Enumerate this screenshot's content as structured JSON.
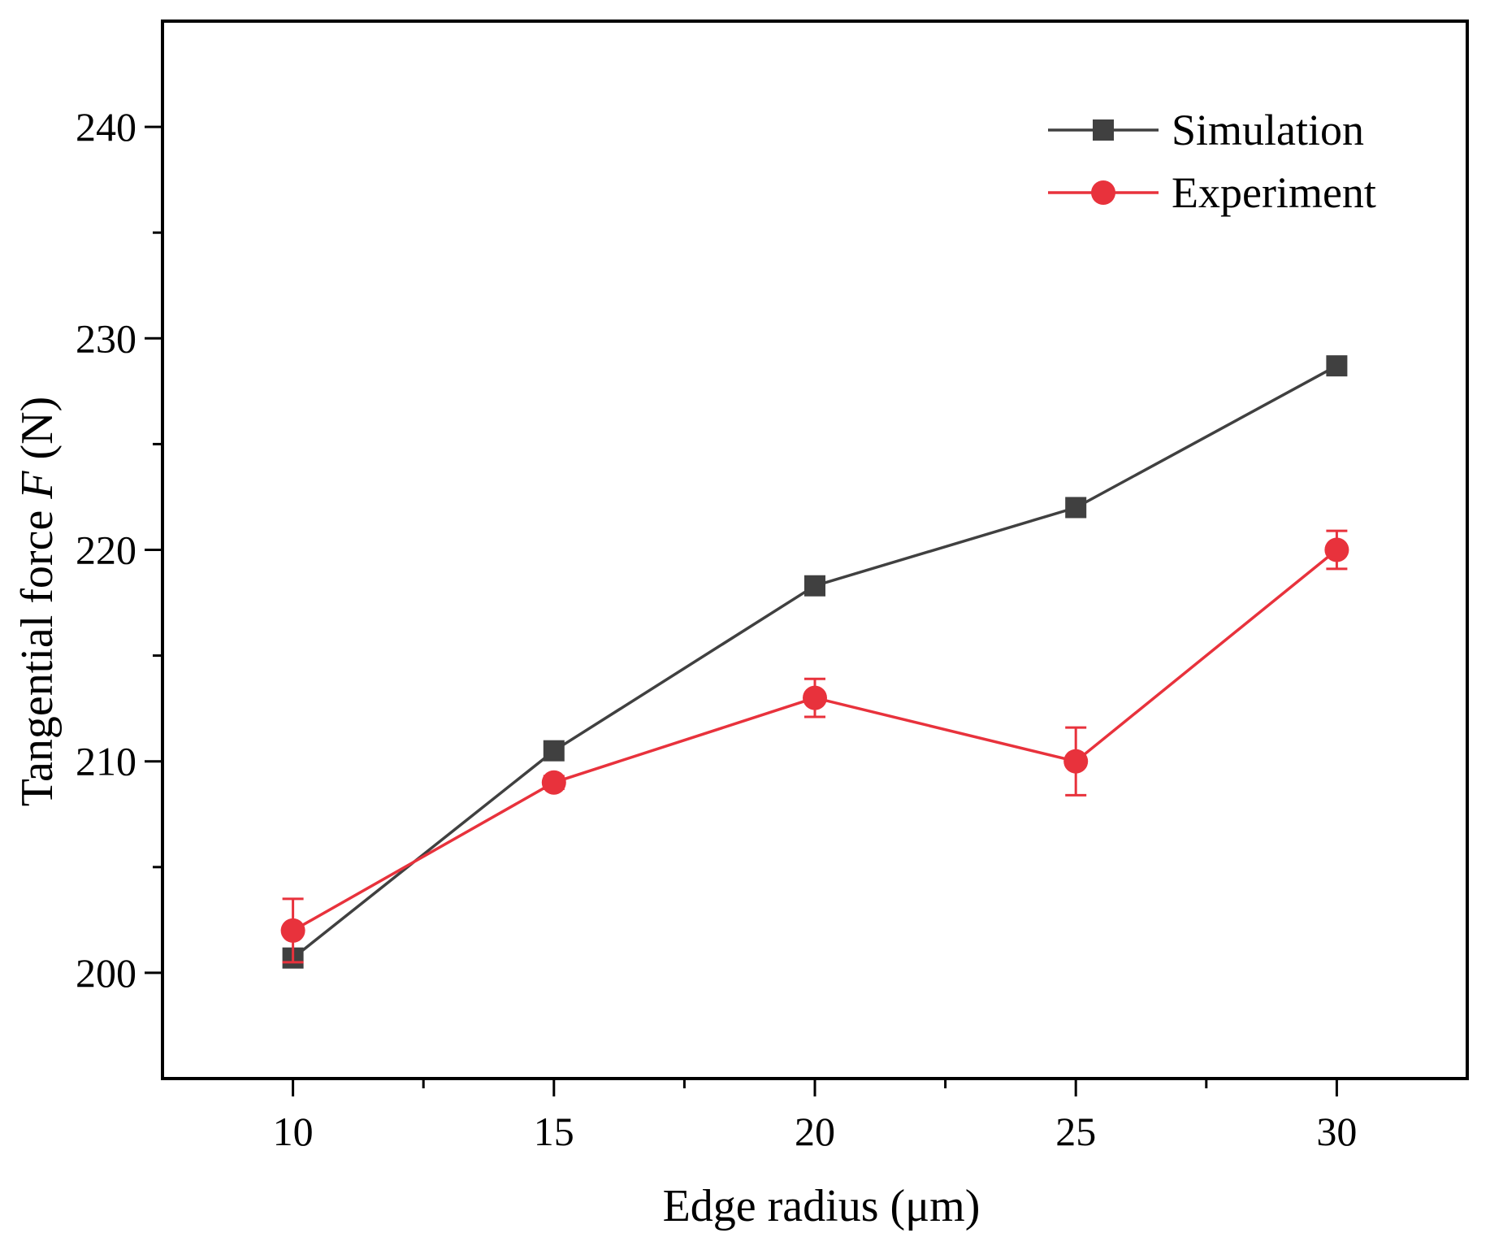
{
  "chart_data": {
    "type": "line",
    "title": "",
    "xlabel": "Edge radius (μm)",
    "ylabel_prefix": "Tangential force ",
    "ylabel_var": "F",
    "ylabel_suffix": " (N)",
    "x": [
      10,
      15,
      20,
      25,
      30
    ],
    "xlim": [
      7.5,
      32.5
    ],
    "ylim": [
      195,
      245
    ],
    "x_ticks": [
      10,
      15,
      20,
      25,
      30
    ],
    "x_minor_ticks": [
      12.5,
      17.5,
      22.5,
      27.5
    ],
    "y_ticks": [
      200,
      210,
      220,
      230,
      240
    ],
    "y_minor_ticks": [
      205,
      215,
      225,
      235
    ],
    "grid": false,
    "legend_position": "top-right",
    "series": [
      {
        "name": "Simulation",
        "color": "#404040",
        "marker": "square",
        "values": [
          200.7,
          210.5,
          218.3,
          222.0,
          228.7
        ]
      },
      {
        "name": "Experiment",
        "color": "#e8323c",
        "marker": "circle",
        "values": [
          202.0,
          209.0,
          213.0,
          210.0,
          220.0
        ],
        "errors": [
          1.5,
          0.3,
          0.9,
          1.6,
          0.9
        ]
      }
    ]
  }
}
